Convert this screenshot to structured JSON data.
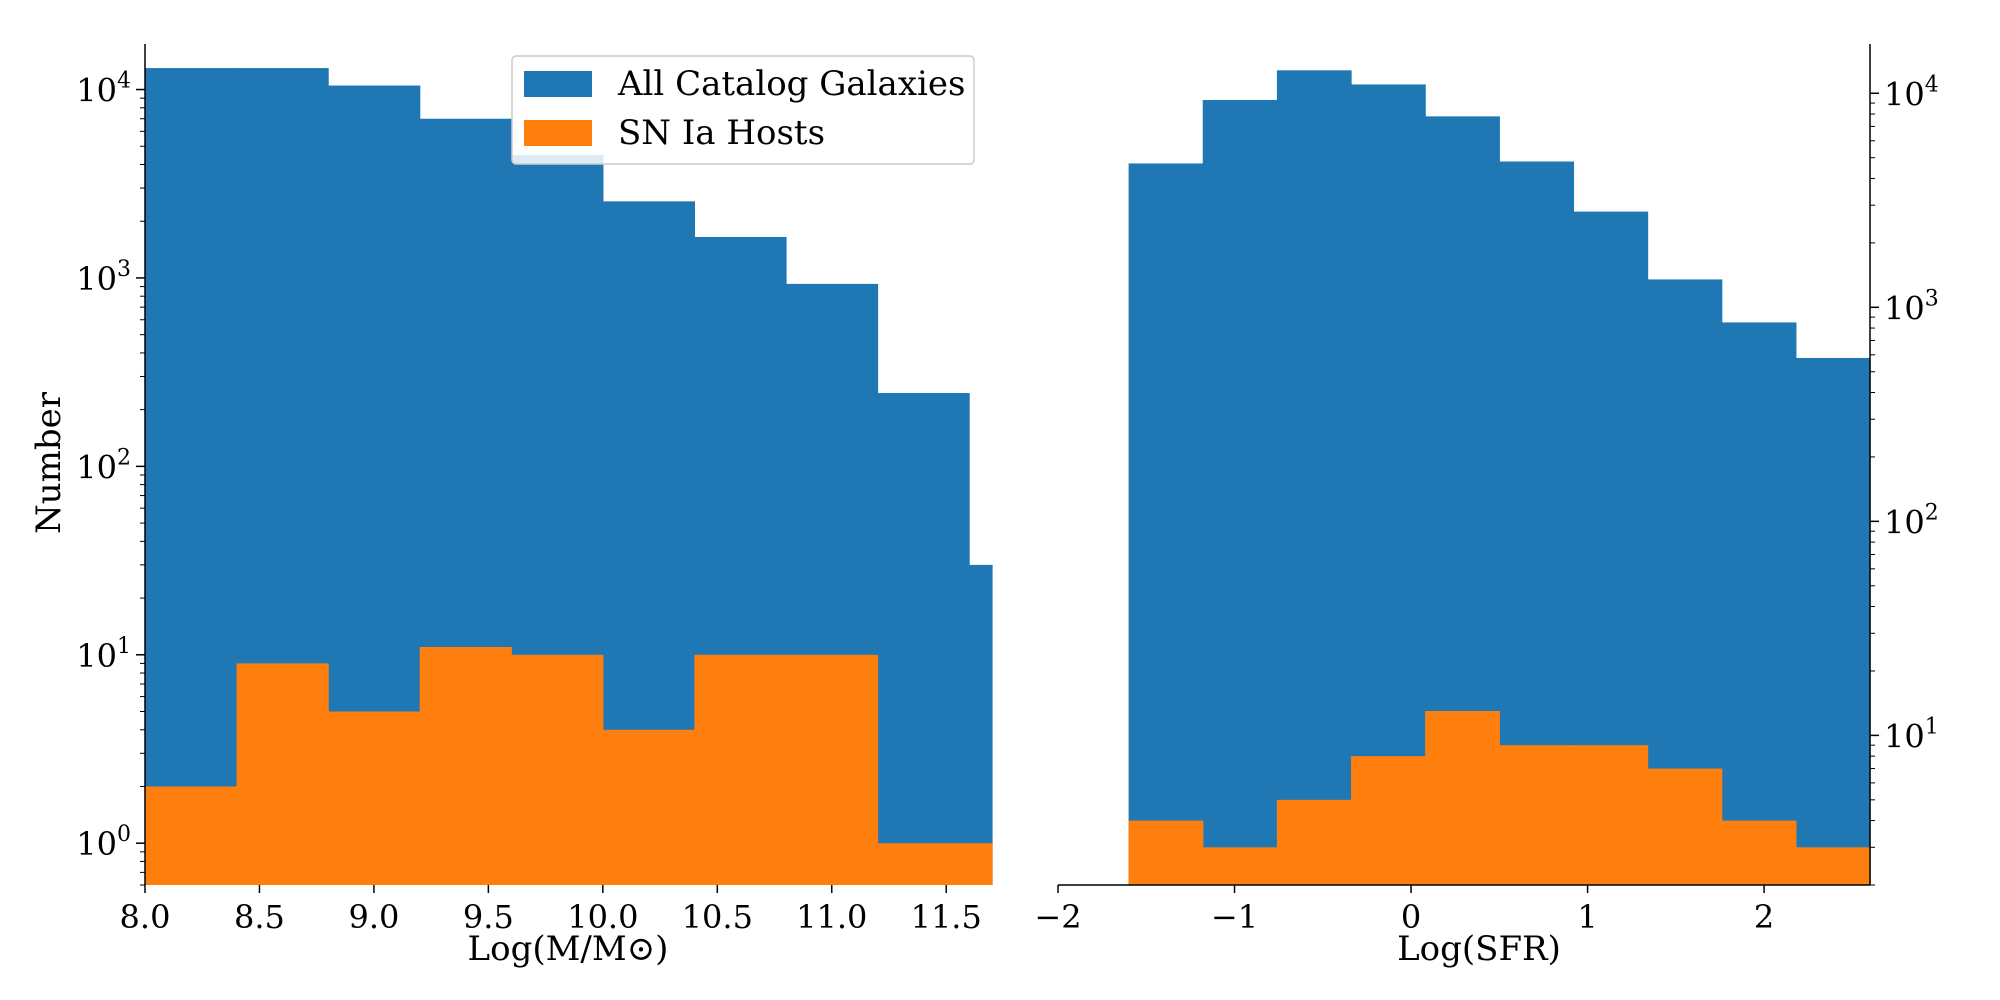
{
  "chart_data": [
    {
      "type": "histogram",
      "xlabel": "Log(M/M⊙)",
      "ylabel": "Number",
      "yscale": "log",
      "xlim": [
        8.0,
        11.7
      ],
      "ylim": [
        0.6,
        14000
      ],
      "xticks": [
        8.0,
        8.5,
        9.0,
        9.5,
        10.0,
        10.5,
        11.0,
        11.5
      ],
      "xtick_labels": [
        "8.0",
        "8.5",
        "9.0",
        "9.5",
        "10.0",
        "10.5",
        "11.0",
        "11.5"
      ],
      "yticks": [
        1,
        10,
        100,
        1000,
        10000
      ],
      "ytick_labels": [
        {
          "base": "10",
          "exp": "0"
        },
        {
          "base": "10",
          "exp": "1"
        },
        {
          "base": "10",
          "exp": "2"
        },
        {
          "base": "10",
          "exp": "3"
        },
        {
          "base": "10",
          "exp": "4"
        }
      ],
      "legend_position": "top-right",
      "series": [
        {
          "name": "All Catalog Galaxies",
          "color": "#1f77b4",
          "bins": [
            [
              8.0,
              8.4
            ],
            [
              8.4,
              8.8
            ],
            [
              8.8,
              9.2
            ],
            [
              9.2,
              9.6
            ],
            [
              9.6,
              10.0
            ],
            [
              10.0,
              10.4
            ],
            [
              10.4,
              10.8
            ],
            [
              10.8,
              11.2
            ],
            [
              11.2,
              11.6
            ],
            [
              11.6,
              11.7
            ]
          ],
          "values": [
            13000,
            13000,
            10500,
            7000,
            4500,
            2550,
            1650,
            930,
            245,
            30
          ]
        },
        {
          "name": "SN Ia Hosts",
          "color": "#ff7f0e",
          "bins": [
            [
              8.0,
              8.4
            ],
            [
              8.4,
              8.8
            ],
            [
              8.8,
              9.2
            ],
            [
              9.2,
              9.6
            ],
            [
              9.6,
              10.0
            ],
            [
              10.0,
              10.4
            ],
            [
              10.4,
              10.8
            ],
            [
              10.8,
              11.2
            ],
            [
              11.2,
              11.6
            ],
            [
              11.6,
              11.7
            ]
          ],
          "values": [
            2,
            9,
            5,
            11,
            10,
            4,
            10,
            10,
            1,
            1
          ]
        }
      ]
    },
    {
      "type": "histogram",
      "xlabel": "Log(SFR)",
      "ylabel": "",
      "yscale": "log",
      "xlim": [
        -2.0,
        2.6
      ],
      "ylim": [
        2,
        14000
      ],
      "xticks": [
        -2,
        -1,
        0,
        1,
        2
      ],
      "xtick_labels": [
        "−2",
        "−1",
        "0",
        "1",
        "2"
      ],
      "yticks": [
        10,
        100,
        1000,
        10000
      ],
      "ytick_labels": [
        {
          "base": "10",
          "exp": "1"
        },
        {
          "base": "10",
          "exp": "2"
        },
        {
          "base": "10",
          "exp": "3"
        },
        {
          "base": "10",
          "exp": "4"
        }
      ],
      "yaxis_side": "right",
      "series": [
        {
          "name": "All Catalog Galaxies",
          "color": "#1f77b4",
          "bins": [
            [
              -1.6,
              -1.18
            ],
            [
              -1.18,
              -0.76
            ],
            [
              -0.76,
              -0.34
            ],
            [
              -0.34,
              0.08
            ],
            [
              0.08,
              0.5
            ],
            [
              0.5,
              0.92
            ],
            [
              0.92,
              1.34
            ],
            [
              1.34,
              1.76
            ],
            [
              1.76,
              2.18
            ],
            [
              2.18,
              2.6
            ]
          ],
          "values": [
            4700,
            9300,
            12800,
            11000,
            7800,
            4800,
            2800,
            1350,
            850,
            580
          ]
        },
        {
          "name": "SN Ia Hosts",
          "color": "#ff7f0e",
          "bins": [
            [
              -1.6,
              -1.18
            ],
            [
              -1.18,
              -0.76
            ],
            [
              -0.76,
              -0.34
            ],
            [
              -0.34,
              0.08
            ],
            [
              0.08,
              0.5
            ],
            [
              0.5,
              0.92
            ],
            [
              0.92,
              1.34
            ],
            [
              1.34,
              1.76
            ],
            [
              1.76,
              2.18
            ],
            [
              2.18,
              2.6
            ]
          ],
          "values": [
            4,
            3,
            5,
            8,
            13,
            9,
            9,
            7,
            4,
            3
          ]
        }
      ]
    }
  ]
}
